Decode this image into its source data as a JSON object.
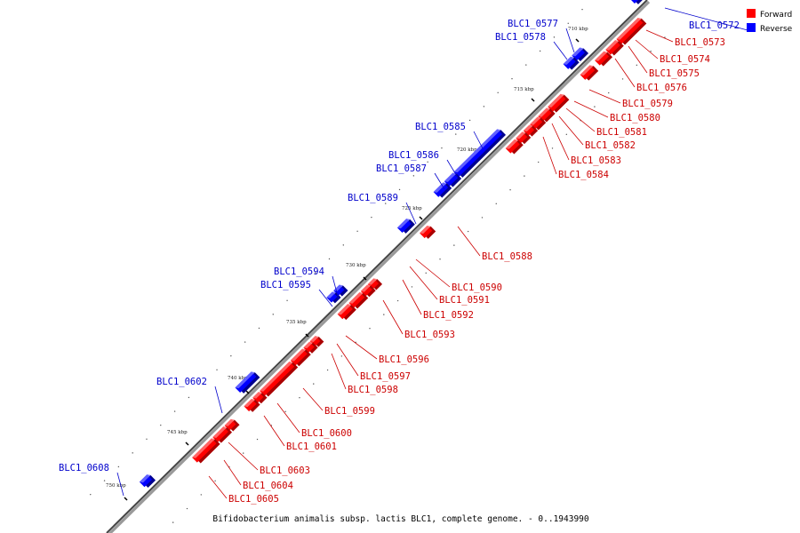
{
  "legend": [
    {
      "label": "Forward",
      "color": "#ff0000"
    },
    {
      "label": "Reverse",
      "color": "#0000ff"
    }
  ],
  "caption": "Bifidobacterium animalis subsp. lactis BLC1, complete genome. - 0..1943990",
  "ticks": [
    "710 kbp",
    "715 kbp",
    "720 kbp",
    "725 kbp",
    "730 kbp",
    "735 kbp",
    "740 kbp",
    "745 kbp",
    "750 kbp"
  ],
  "genes": [
    {
      "name": "BLC1_0572",
      "strand": "reverse"
    },
    {
      "name": "BLC1_0573",
      "strand": "forward"
    },
    {
      "name": "BLC1_0574",
      "strand": "forward"
    },
    {
      "name": "BLC1_0575",
      "strand": "forward"
    },
    {
      "name": "BLC1_0576",
      "strand": "forward"
    },
    {
      "name": "BLC1_0577",
      "strand": "reverse"
    },
    {
      "name": "BLC1_0578",
      "strand": "reverse"
    },
    {
      "name": "BLC1_0579",
      "strand": "forward"
    },
    {
      "name": "BLC1_0580",
      "strand": "forward"
    },
    {
      "name": "BLC1_0581",
      "strand": "forward"
    },
    {
      "name": "BLC1_0582",
      "strand": "forward"
    },
    {
      "name": "BLC1_0583",
      "strand": "forward"
    },
    {
      "name": "BLC1_0584",
      "strand": "forward"
    },
    {
      "name": "BLC1_0585",
      "strand": "reverse"
    },
    {
      "name": "BLC1_0586",
      "strand": "reverse"
    },
    {
      "name": "BLC1_0587",
      "strand": "reverse"
    },
    {
      "name": "BLC1_0588",
      "strand": "forward"
    },
    {
      "name": "BLC1_0589",
      "strand": "reverse"
    },
    {
      "name": "BLC1_0590",
      "strand": "forward"
    },
    {
      "name": "BLC1_0591",
      "strand": "forward"
    },
    {
      "name": "BLC1_0592",
      "strand": "forward"
    },
    {
      "name": "BLC1_0593",
      "strand": "forward"
    },
    {
      "name": "BLC1_0594",
      "strand": "reverse"
    },
    {
      "name": "BLC1_0595",
      "strand": "reverse"
    },
    {
      "name": "BLC1_0596",
      "strand": "forward"
    },
    {
      "name": "BLC1_0597",
      "strand": "forward"
    },
    {
      "name": "BLC1_0598",
      "strand": "forward"
    },
    {
      "name": "BLC1_0599",
      "strand": "forward"
    },
    {
      "name": "BLC1_0600",
      "strand": "forward"
    },
    {
      "name": "BLC1_0601",
      "strand": "forward"
    },
    {
      "name": "BLC1_0602",
      "strand": "reverse"
    },
    {
      "name": "BLC1_0603",
      "strand": "forward"
    },
    {
      "name": "BLC1_0604",
      "strand": "forward"
    },
    {
      "name": "BLC1_0605",
      "strand": "forward"
    },
    {
      "name": "BLC1_0608",
      "strand": "reverse"
    }
  ]
}
